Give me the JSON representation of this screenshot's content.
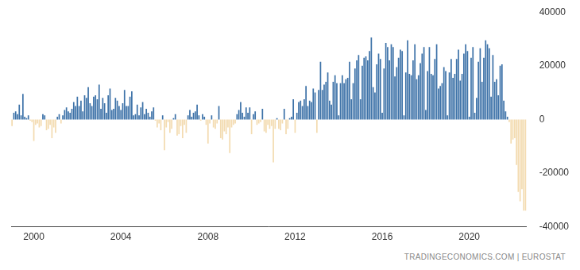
{
  "chart_data": {
    "type": "bar",
    "source": "TRADINGECONOMICS.COM | EUROSTAT",
    "categories": [
      null,
      null,
      null,
      null,
      null,
      null,
      null,
      null,
      null,
      null,
      null,
      null,
      "2000",
      null,
      null,
      null,
      null,
      null,
      null,
      null,
      null,
      null,
      null,
      null,
      null,
      null,
      null,
      null,
      null,
      null,
      null,
      null,
      null,
      null,
      null,
      null,
      null,
      null,
      null,
      null,
      null,
      null,
      null,
      null,
      null,
      null,
      null,
      null,
      null,
      null,
      null,
      null,
      null,
      null,
      null,
      null,
      null,
      null,
      null,
      null,
      "2004",
      null,
      null,
      null,
      null,
      null,
      null,
      null,
      null,
      null,
      null,
      null,
      null,
      null,
      null,
      null,
      null,
      null,
      null,
      null,
      null,
      null,
      null,
      null,
      null,
      null,
      null,
      null,
      null,
      null,
      null,
      null,
      null,
      null,
      null,
      null,
      null,
      null,
      null,
      null,
      null,
      null,
      null,
      null,
      null,
      null,
      null,
      null,
      "2008",
      null,
      null,
      null,
      null,
      null,
      null,
      null,
      null,
      null,
      null,
      null,
      null,
      null,
      null,
      null,
      null,
      null,
      null,
      null,
      null,
      null,
      null,
      null,
      null,
      null,
      null,
      null,
      null,
      null,
      null,
      null,
      null,
      null,
      null,
      null,
      null,
      null,
      null,
      null,
      null,
      null,
      null,
      null,
      null,
      null,
      null,
      null,
      "2012",
      null,
      null,
      null,
      null,
      null,
      null,
      null,
      null,
      null,
      null,
      null,
      null,
      null,
      null,
      null,
      null,
      null,
      null,
      null,
      null,
      null,
      null,
      null,
      null,
      null,
      null,
      null,
      null,
      null,
      null,
      null,
      null,
      null,
      null,
      null,
      null,
      null,
      null,
      null,
      null,
      null,
      null,
      null,
      null,
      null,
      null,
      null,
      "2016",
      null,
      null,
      null,
      null,
      null,
      null,
      null,
      null,
      null,
      null,
      null,
      null,
      null,
      null,
      null,
      null,
      null,
      null,
      null,
      null,
      null,
      null,
      null,
      null,
      null,
      null,
      null,
      null,
      null,
      null,
      null,
      null,
      null,
      null,
      null,
      null,
      null,
      null,
      null,
      null,
      null,
      null,
      null,
      null,
      null,
      null,
      null,
      "2020",
      null,
      null,
      null,
      null,
      null,
      null,
      null,
      null,
      null,
      null,
      null,
      null,
      null,
      null,
      null,
      null,
      null,
      null,
      null,
      null,
      null,
      null,
      null,
      null,
      null,
      null,
      null,
      null,
      null,
      null,
      null
    ],
    "values": [
      -2500,
      2500,
      3000,
      2000,
      5500,
      1500,
      9500,
      1000,
      500,
      1500,
      -500,
      -1000,
      -8000,
      -2000,
      -1500,
      -3000,
      -2500,
      2000,
      1500,
      -4000,
      -3500,
      -2000,
      -7000,
      -3000,
      -5000,
      1000,
      2000,
      -1500,
      1500,
      3500,
      4500,
      3000,
      2500,
      4000,
      6500,
      5000,
      8500,
      5000,
      7000,
      3000,
      9000,
      8000,
      12000,
      6000,
      5000,
      8500,
      9000,
      7500,
      13000,
      4000,
      8000,
      6000,
      2500,
      9000,
      11500,
      3500,
      4000,
      8000,
      7000,
      5000,
      3500,
      6000,
      11000,
      5000,
      5000,
      8500,
      10500,
      1500,
      2000,
      5500,
      1500,
      4500,
      6500,
      2000,
      4000,
      2500,
      1000,
      3000,
      4500,
      -500,
      -3000,
      -1500,
      -4000,
      1500,
      -11500,
      -3000,
      -1000,
      -5000,
      -3500,
      500,
      2000,
      -6000,
      -5500,
      -2500,
      -7000,
      -2000,
      -5000,
      1500,
      3500,
      1000,
      2500,
      3000,
      5500,
      1500,
      -500,
      2000,
      1000,
      -2000,
      -9000,
      -1500,
      1500,
      -3000,
      -3500,
      -1500,
      5000,
      -7000,
      -7500,
      -4500,
      -5500,
      -3000,
      -12500,
      -3000,
      -2000,
      -1500,
      2000,
      3500,
      6500,
      2500,
      1000,
      4500,
      2500,
      4500,
      -5500,
      2000,
      3000,
      -2000,
      -1500,
      -1000,
      4000,
      -4500,
      -5000,
      -2000,
      -3500,
      -2500,
      -16000,
      -3500,
      500,
      -3500,
      -4000,
      -1500,
      4000,
      -5500,
      -3500,
      500,
      1000,
      7500,
      -5000,
      2500,
      6500,
      7000,
      5000,
      7500,
      12500,
      5000,
      7000,
      6500,
      11500,
      10000,
      -5000,
      11000,
      21500,
      11000,
      13000,
      14000,
      17500,
      7000,
      5500,
      14000,
      16500,
      13500,
      1500,
      13500,
      16500,
      13500,
      15000,
      15500,
      21500,
      7500,
      13500,
      19000,
      22000,
      24000,
      7500,
      20000,
      23000,
      23500,
      22000,
      25500,
      30500,
      12000,
      10000,
      20500,
      24500,
      22500,
      2500,
      19000,
      28500,
      27000,
      22000,
      28000,
      27000,
      16000,
      19500,
      23000,
      26000,
      25500,
      1500,
      17500,
      29500,
      17000,
      16500,
      22000,
      28000,
      15000,
      16500,
      21000,
      24500,
      27000,
      3500,
      18000,
      27000,
      17000,
      16500,
      22500,
      28000,
      11500,
      12500,
      13500,
      19500,
      18000,
      1500,
      17500,
      22500,
      15500,
      17000,
      22500,
      26000,
      14500,
      17000,
      24500,
      28000,
      25500,
      1000,
      23000,
      27000,
      2500,
      8000,
      21500,
      26500,
      14000,
      23000,
      29500,
      28000,
      26500,
      8500,
      24000,
      14000,
      15000,
      9000,
      20000,
      20500,
      7000,
      3000,
      1000,
      -1000,
      -9000,
      -7500,
      -7000,
      -17000,
      -27000,
      -30500,
      -26000,
      -34000,
      -34000
    ],
    "colors": [
      "#f3dbb0",
      "#3d72a8",
      "#3d72a8",
      "#3d72a8",
      "#3d72a8",
      "#3d72a8",
      "#3d72a8",
      "#3d72a8",
      "#3d72a8",
      "#3d72a8",
      "#f3dbb0",
      "#f3dbb0",
      "#f3dbb0",
      "#f3dbb0",
      "#f3dbb0",
      "#f3dbb0",
      "#f3dbb0",
      "#3d72a8",
      "#3d72a8",
      "#f3dbb0",
      "#f3dbb0",
      "#f3dbb0",
      "#f3dbb0",
      "#f3dbb0",
      "#f3dbb0",
      "#3d72a8",
      "#3d72a8",
      "#f3dbb0",
      "#3d72a8",
      "#3d72a8",
      "#3d72a8",
      "#3d72a8",
      "#3d72a8",
      "#3d72a8",
      "#3d72a8",
      "#3d72a8",
      "#3d72a8",
      "#3d72a8",
      "#3d72a8",
      "#3d72a8",
      "#3d72a8",
      "#3d72a8",
      "#3d72a8",
      "#3d72a8",
      "#3d72a8",
      "#3d72a8",
      "#3d72a8",
      "#3d72a8",
      "#3d72a8",
      "#3d72a8",
      "#3d72a8",
      "#3d72a8",
      "#3d72a8",
      "#3d72a8",
      "#3d72a8",
      "#3d72a8",
      "#3d72a8",
      "#3d72a8",
      "#3d72a8",
      "#3d72a8",
      "#3d72a8",
      "#3d72a8",
      "#3d72a8",
      "#3d72a8",
      "#3d72a8",
      "#3d72a8",
      "#3d72a8",
      "#3d72a8",
      "#3d72a8",
      "#3d72a8",
      "#3d72a8",
      "#3d72a8",
      "#3d72a8",
      "#3d72a8",
      "#3d72a8",
      "#3d72a8",
      "#3d72a8",
      "#3d72a8",
      "#3d72a8",
      "#f3dbb0",
      "#f3dbb0",
      "#f3dbb0",
      "#f3dbb0",
      "#3d72a8",
      "#f3dbb0",
      "#f3dbb0",
      "#f3dbb0",
      "#f3dbb0",
      "#f3dbb0",
      "#3d72a8",
      "#3d72a8",
      "#f3dbb0",
      "#f3dbb0",
      "#f3dbb0",
      "#f3dbb0",
      "#f3dbb0",
      "#f3dbb0",
      "#3d72a8",
      "#3d72a8",
      "#3d72a8",
      "#3d72a8",
      "#3d72a8",
      "#3d72a8",
      "#3d72a8",
      "#f3dbb0",
      "#3d72a8",
      "#3d72a8",
      "#f3dbb0",
      "#f3dbb0",
      "#f3dbb0",
      "#3d72a8",
      "#f3dbb0",
      "#f3dbb0",
      "#f3dbb0",
      "#3d72a8",
      "#f3dbb0",
      "#f3dbb0",
      "#f3dbb0",
      "#f3dbb0",
      "#f3dbb0",
      "#f3dbb0",
      "#f3dbb0",
      "#f3dbb0",
      "#f3dbb0",
      "#3d72a8",
      "#3d72a8",
      "#3d72a8",
      "#3d72a8",
      "#3d72a8",
      "#3d72a8",
      "#3d72a8",
      "#3d72a8",
      "#f3dbb0",
      "#3d72a8",
      "#3d72a8",
      "#f3dbb0",
      "#f3dbb0",
      "#f3dbb0",
      "#3d72a8",
      "#f3dbb0",
      "#f3dbb0",
      "#f3dbb0",
      "#f3dbb0",
      "#f3dbb0",
      "#f3dbb0",
      "#f3dbb0",
      "#3d72a8",
      "#f3dbb0",
      "#f3dbb0",
      "#f3dbb0",
      "#3d72a8",
      "#f3dbb0",
      "#f3dbb0",
      "#3d72a8",
      "#3d72a8",
      "#3d72a8",
      "#f3dbb0",
      "#3d72a8",
      "#3d72a8",
      "#3d72a8",
      "#3d72a8",
      "#3d72a8",
      "#3d72a8",
      "#3d72a8",
      "#3d72a8",
      "#3d72a8",
      "#3d72a8",
      "#3d72a8",
      "#f3dbb0",
      "#3d72a8",
      "#3d72a8",
      "#3d72a8",
      "#3d72a8",
      "#3d72a8",
      "#3d72a8",
      "#3d72a8",
      "#3d72a8",
      "#3d72a8",
      "#3d72a8",
      "#3d72a8",
      "#3d72a8",
      "#3d72a8",
      "#3d72a8",
      "#3d72a8",
      "#3d72a8",
      "#3d72a8",
      "#3d72a8",
      "#3d72a8",
      "#3d72a8",
      "#3d72a8",
      "#3d72a8",
      "#3d72a8",
      "#3d72a8",
      "#3d72a8",
      "#3d72a8",
      "#3d72a8",
      "#3d72a8",
      "#3d72a8",
      "#3d72a8",
      "#3d72a8",
      "#3d72a8",
      "#3d72a8",
      "#3d72a8",
      "#3d72a8",
      "#3d72a8",
      "#3d72a8",
      "#3d72a8",
      "#3d72a8",
      "#3d72a8",
      "#3d72a8",
      "#3d72a8",
      "#3d72a8",
      "#3d72a8",
      "#3d72a8",
      "#3d72a8",
      "#3d72a8",
      "#3d72a8",
      "#3d72a8",
      "#3d72a8",
      "#3d72a8",
      "#3d72a8",
      "#3d72a8",
      "#3d72a8",
      "#3d72a8",
      "#3d72a8",
      "#3d72a8",
      "#3d72a8",
      "#3d72a8",
      "#3d72a8",
      "#3d72a8",
      "#3d72a8",
      "#3d72a8",
      "#3d72a8",
      "#3d72a8",
      "#3d72a8",
      "#3d72a8",
      "#3d72a8",
      "#3d72a8",
      "#3d72a8",
      "#3d72a8",
      "#3d72a8",
      "#3d72a8",
      "#3d72a8",
      "#3d72a8",
      "#3d72a8",
      "#3d72a8",
      "#3d72a8",
      "#3d72a8",
      "#3d72a8",
      "#3d72a8",
      "#3d72a8",
      "#3d72a8",
      "#3d72a8",
      "#3d72a8",
      "#3d72a8",
      "#3d72a8",
      "#3d72a8",
      "#3d72a8",
      "#3d72a8",
      "#3d72a8",
      "#3d72a8",
      "#3d72a8",
      "#3d72a8",
      "#3d72a8",
      "#3d72a8",
      "#3d72a8",
      "#3d72a8",
      "#3d72a8",
      "#3d72a8",
      "#3d72a8",
      "#3d72a8",
      "#3d72a8",
      "#3d72a8",
      "#3d72a8",
      "#f3dbb0",
      "#f3dbb0",
      "#f3dbb0",
      "#f3dbb0",
      "#f3dbb0",
      "#f3dbb0",
      "#f3dbb0",
      "#f3dbb0",
      "#f3dbb0",
      "#f3dbb0"
    ],
    "ylim": [
      -40000,
      40000
    ],
    "yticks": [
      -40000,
      -20000,
      0,
      20000,
      40000
    ],
    "grid": false
  }
}
